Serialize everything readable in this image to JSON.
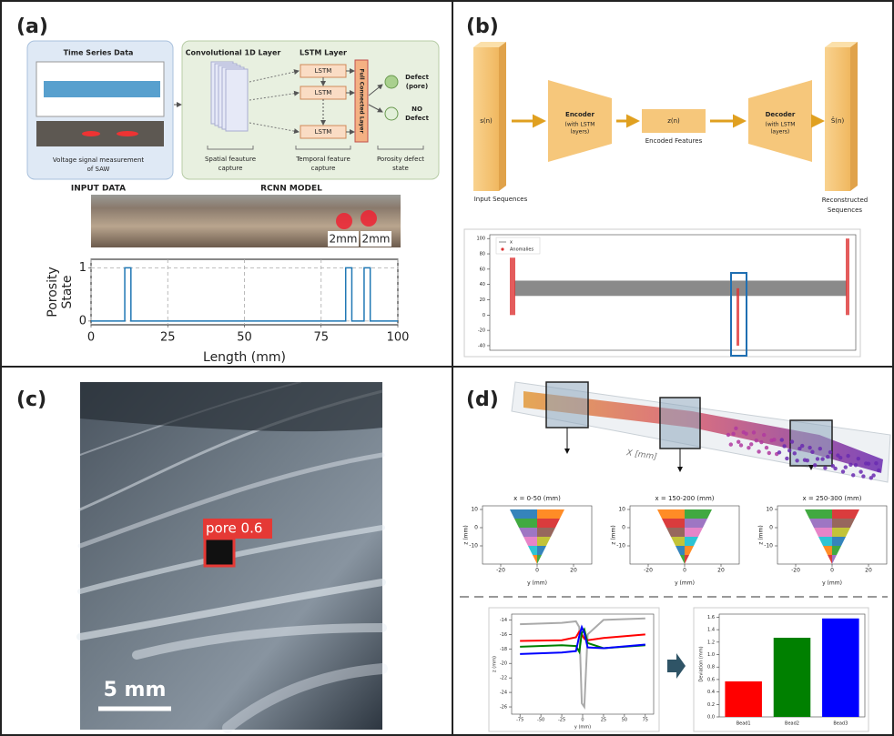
{
  "panel_a": {
    "label": "(a)",
    "input": {
      "title": "Time Series Data",
      "caption": [
        "Voltage signal measurement",
        "of SAW"
      ],
      "heading": "INPUT DATA"
    },
    "model": {
      "conv_title": "Convolutional 1D Layer",
      "lstm_title": "LSTM Layer",
      "lstm_cells": [
        "LSTM",
        "LSTM",
        "LSTM"
      ],
      "fc": "Full Connected Layer",
      "outputs": [
        [
          "Defect",
          "(pore)"
        ],
        [
          "NO",
          "Defect"
        ]
      ],
      "captions": [
        [
          "Spatial feauture",
          "capture"
        ],
        [
          "Temporal feature",
          "capture"
        ],
        [
          "Porosity defect",
          "state"
        ]
      ],
      "heading": "RCNN MODEL"
    },
    "scale_labels": [
      "2mm",
      "2mm"
    ],
    "chart": {
      "type": "line",
      "x": [
        0,
        11,
        11,
        13,
        13,
        83,
        83,
        85,
        85,
        89,
        89,
        91,
        91,
        100
      ],
      "values": [
        0,
        0,
        1,
        1,
        0,
        0,
        1,
        1,
        0,
        0,
        1,
        1,
        0,
        0
      ],
      "color": "#1f77b4",
      "xlim": [
        0,
        100
      ],
      "ylim": [
        -0.07,
        1.16
      ],
      "xticks": [
        0,
        25,
        50,
        75,
        100
      ],
      "yticks": [
        0,
        1
      ],
      "grid": true,
      "xlabel": "Length (mm)",
      "ylabel": [
        "Porosity",
        "State"
      ]
    }
  },
  "panel_b": {
    "label": "(b)",
    "input": "s(n)",
    "input_caption": "Input Sequences",
    "encoder": [
      "Encoder",
      "(with LSTM",
      "layers)"
    ],
    "latent": "z(n)",
    "latent_caption": "Encoded Features",
    "decoder": [
      "Decoder",
      "(with LSTM",
      "layers)"
    ],
    "output": "Ŝ(n)",
    "output_caption": [
      "Reconstructed",
      "Sequences"
    ],
    "chart": {
      "legend": [
        "x",
        "Anomalies"
      ],
      "ylim": [
        -46,
        105
      ],
      "yticks": [
        100,
        80,
        60,
        40,
        20,
        0,
        -20,
        -40
      ]
    }
  },
  "panel_c": {
    "label": "(c)",
    "detection": "pore 0.6",
    "scale_bar": "5 mm"
  },
  "panel_d": {
    "label": "(d)",
    "axis_label": "X [mm]",
    "sections": [
      {
        "title": "x = 0-50 (mm)"
      },
      {
        "title": "x = 150-200 (mm)"
      },
      {
        "title": "x = 250-300 (mm)"
      }
    ],
    "section_axes": {
      "xlim": [
        -30,
        30
      ],
      "ylim": [
        -20,
        12
      ],
      "xticks": [
        -20,
        0,
        20
      ],
      "yticks": [
        10,
        0,
        -10
      ],
      "xlabel": "y (mm)",
      "ylabel": "z (mm)"
    },
    "profile": {
      "type": "line",
      "x": [
        -75,
        -25,
        -8,
        -4,
        -1,
        2,
        6,
        25,
        75
      ],
      "series": [
        {
          "color": "#aaaaaa",
          "values": [
            -14.6,
            -14.4,
            -14.2,
            -15,
            -25.5,
            -26,
            -16,
            -14,
            -13.8
          ]
        },
        {
          "color": "#ff0000",
          "values": [
            -16.9,
            -16.8,
            -16.4,
            -15.6,
            -16,
            -16.6,
            -16.8,
            -16.5,
            -16
          ]
        },
        {
          "color": "#008000",
          "values": [
            -17.7,
            -17.5,
            -17.6,
            -18.4,
            -15.8,
            -15.3,
            -17.2,
            -17.9,
            -17.5
          ]
        },
        {
          "color": "#0000ff",
          "values": [
            -18.7,
            -18.5,
            -18.3,
            -16.2,
            -15,
            -15.8,
            -17.8,
            -17.9,
            -17.4
          ]
        }
      ],
      "xlim": [
        -85,
        85
      ],
      "ylim": [
        -27,
        -13.2
      ],
      "xticks": [
        -75,
        -50,
        -25,
        0,
        25,
        50,
        75
      ],
      "yticks": [
        -14,
        -16,
        -18,
        -20,
        -22,
        -24,
        -26
      ],
      "xlabel": "y (mm)",
      "ylabel": "z (mm)"
    },
    "deviation": {
      "type": "bar",
      "categories": [
        "Bead1",
        "Bead2",
        "Bead3"
      ],
      "values": [
        0.57,
        1.27,
        1.58
      ],
      "colors": [
        "#ff0000",
        "#008000",
        "#0000ff"
      ],
      "ylim": [
        0,
        1.65
      ],
      "yticks": [
        {
          "value": 0,
          "label": "0.0"
        },
        0.2,
        0.4,
        0.6,
        0.8,
        {
          "value": 1,
          "label": "1.0"
        },
        1.2,
        1.4,
        1.6
      ],
      "ylabel": "Deviation (mm)"
    }
  }
}
